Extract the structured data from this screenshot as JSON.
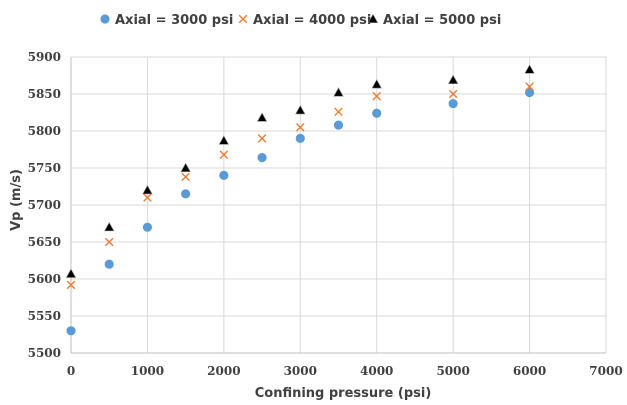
{
  "chart_data": {
    "type": "scatter",
    "xlabel": "Confining pressure (psi)",
    "ylabel": "Vp (m/s)",
    "xlim": [
      0,
      7000
    ],
    "ylim": [
      5500,
      5900
    ],
    "xticks": [
      0,
      1000,
      2000,
      3000,
      4000,
      5000,
      6000,
      7000
    ],
    "yticks": [
      5500,
      5550,
      5600,
      5650,
      5700,
      5750,
      5800,
      5850,
      5900
    ],
    "grid": true,
    "legend_position": "top",
    "series": [
      {
        "name": "Axial = 3000 psi",
        "marker": "circle",
        "color": "#5b9bd5",
        "x": [
          0,
          500,
          1000,
          1500,
          2000,
          2500,
          3000,
          3500,
          4000,
          5000,
          6000
        ],
        "y": [
          5530,
          5620,
          5670,
          5715,
          5740,
          5764,
          5790,
          5808,
          5824,
          5837,
          5852
        ]
      },
      {
        "name": "Axial = 4000 psi",
        "marker": "x",
        "color": "#ed7d31",
        "x": [
          0,
          500,
          1000,
          1500,
          2000,
          2500,
          3000,
          3500,
          4000,
          5000,
          6000
        ],
        "y": [
          5592,
          5650,
          5710,
          5738,
          5768,
          5790,
          5805,
          5826,
          5847,
          5850,
          5860
        ]
      },
      {
        "name": "Axial = 5000 psi",
        "marker": "triangle",
        "color": "#000000",
        "x": [
          0,
          500,
          1000,
          1500,
          2000,
          2500,
          3000,
          3500,
          4000,
          5000,
          6000
        ],
        "y": [
          5607,
          5670,
          5720,
          5750,
          5787,
          5818,
          5828,
          5852,
          5863,
          5869,
          5883
        ]
      }
    ]
  }
}
